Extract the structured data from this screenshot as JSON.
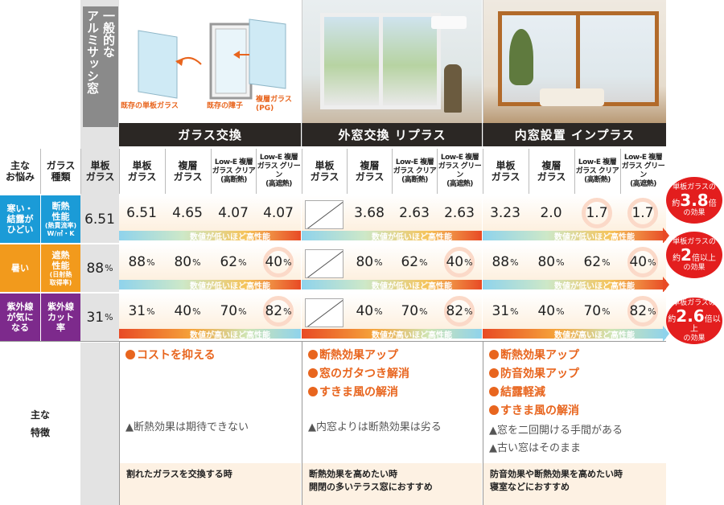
{
  "hero": {
    "aluminum_sash": "一般的な\nアルミサッシ窓",
    "captions": {
      "single_glass": "既存の単板ガラス",
      "existing_frame": "既存の障子",
      "double_glass": "複層ガラス\n(PG)"
    }
  },
  "groups": [
    "ガラス交換",
    "外窓交換 リプラス",
    "内窓設置 インプラス"
  ],
  "header": {
    "concern": "主な\nお悩み",
    "glass_type": "ガラス\n種類",
    "aluminum_col": "単板\nガラス",
    "columns": [
      [
        "単板\nガラス",
        "複層\nガラス",
        "Low-E 複層\nガラス クリア\n(高断熱)",
        "Low-E 複層\nガラス グリーン\n(高遮熱)"
      ],
      [
        "単板\nガラス",
        "複層\nガラス",
        "Low-E 複層\nガラス クリア\n(高断熱)",
        "Low-E 複層\nガラス グリーン\n(高遮熱)"
      ],
      [
        "単板\nガラス",
        "複層\nガラス",
        "Low-E 複層\nガラス クリア\n(高断熱)",
        "Low-E 複層\nガラス グリーン\n(高遮熱)"
      ]
    ]
  },
  "rows": [
    {
      "concern": "寒い・\n結露が\nひどい",
      "metric": "断熱\n性能",
      "metric_sub": "(熱貫流率)\nW/㎡・K",
      "color": "#1b9bd7",
      "aluminum": "6.51",
      "values": [
        "6.51",
        "4.65",
        "4.07",
        "4.07",
        "",
        "3.68",
        "2.63",
        "2.63",
        "3.23",
        "2.0",
        "1.7",
        "1.7"
      ],
      "unit": "",
      "bar_text": "数値が低いほど高性能",
      "badge": {
        "pre": "単板ガラスの",
        "yaku": "約",
        "num": "3.8",
        "suffix": "倍",
        "post": "の効果"
      }
    },
    {
      "concern": "暑い",
      "metric": "遮熱\n性能",
      "metric_sub": "(日射熱\n取得率)",
      "color": "#f29a1c",
      "aluminum": "88",
      "values": [
        "88",
        "80",
        "62",
        "40",
        "",
        "80",
        "62",
        "40",
        "88",
        "80",
        "62",
        "40"
      ],
      "unit": "%",
      "bar_text": "数値が低いほど高性能",
      "badge": {
        "pre": "単板ガラスの",
        "yaku": "約",
        "num": "2",
        "suffix": "倍以上",
        "post": "の効果"
      }
    },
    {
      "concern": "紫外線\nが気に\nなる",
      "metric": "紫外線\nカット\n率",
      "metric_sub": "",
      "color": "#7d2a8c",
      "aluminum": "31",
      "values": [
        "31",
        "40",
        "70",
        "82",
        "",
        "40",
        "70",
        "82",
        "31",
        "40",
        "70",
        "82"
      ],
      "unit": "%",
      "bar_text": "数値が高いほど高性能",
      "badge": {
        "pre": "単板ガラスの",
        "yaku": "約",
        "num": "2.6",
        "suffix": "倍以上",
        "post": "の効果"
      }
    }
  ],
  "features": {
    "label": "主な\n特徴",
    "groups": [
      {
        "pros": [
          "コストを抑える"
        ],
        "cons": [
          "▲断熱効果は期待できない"
        ],
        "recommend": "割れたガラスを交換する時"
      },
      {
        "pros": [
          "断熱効果アップ",
          "窓のガタつき解消",
          "すきま風の解消"
        ],
        "cons": [
          "▲内窓よりは断熱効果は劣る"
        ],
        "recommend": "断熱効果を高めたい時\n開閉の多いテラス窓におすすめ"
      },
      {
        "pros": [
          "断熱効果アップ",
          "防音効果アップ",
          "結露軽減",
          "すきま風の解消"
        ],
        "cons": [
          "▲窓を二回開ける手間がある",
          "▲古い窓はそのまま"
        ],
        "recommend": "防音効果や断熱効果を高めたい時\n寝室などにおすすめ"
      }
    ]
  }
}
